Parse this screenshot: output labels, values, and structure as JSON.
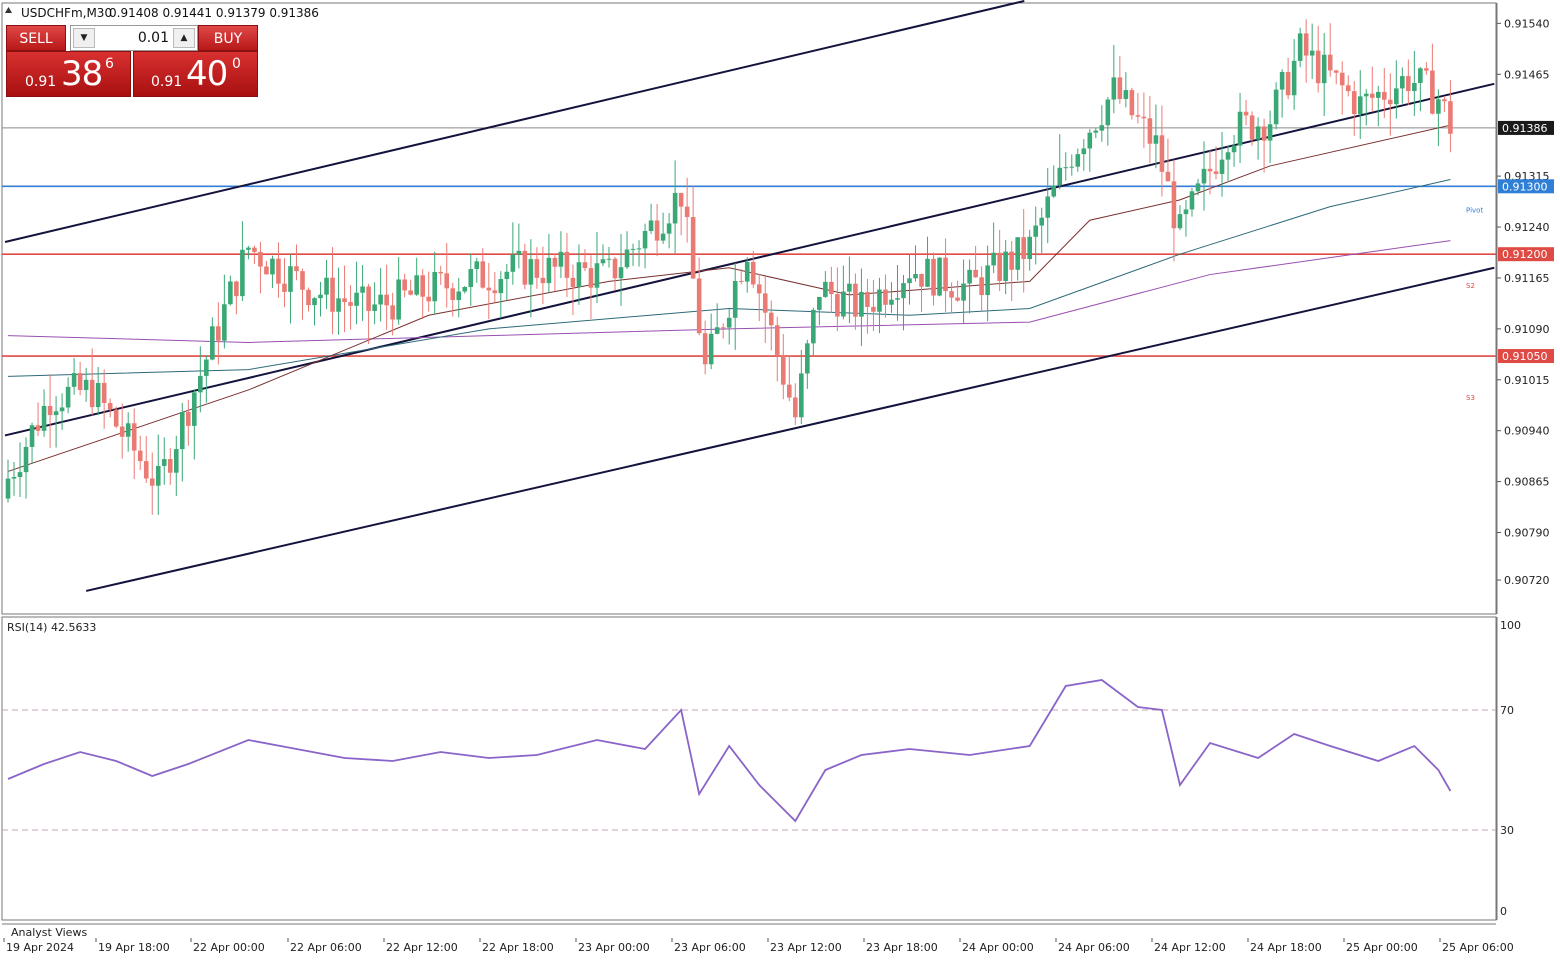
{
  "header": {
    "symbol": "USDCHFm,M30",
    "ohlc": "0.91408 0.91441 0.91379 0.91386"
  },
  "trade_panel": {
    "sell_label": "SELL",
    "buy_label": "BUY",
    "volume": "0.01",
    "sell_prefix": "0.91",
    "sell_big": "38",
    "sell_sup": "6",
    "buy_prefix": "0.91",
    "buy_big": "40",
    "buy_sup": "0"
  },
  "colors": {
    "bull": "#3aa876",
    "bear": "#ea7a74",
    "channel": "#13133d",
    "pivot_line": "#2f7fd6",
    "support_line": "#e04a44",
    "ma_fast": "#7a3030",
    "ma_mid": "#2e6a7a",
    "ma_slow": "#9a4fb0",
    "rsi": "#8a64c8"
  },
  "chart_data": {
    "type": "candlestick",
    "title": "USDCHFm,M30",
    "ylim": [
      0.9067,
      0.9157
    ],
    "price_ticks": [
      "0.91540",
      "0.91465",
      "0.91315",
      "0.91240",
      "0.91165",
      "0.91090",
      "0.91015",
      "0.90940",
      "0.90865",
      "0.90790",
      "0.90720"
    ],
    "time_labels": [
      "19 Apr 2024",
      "19 Apr 18:00",
      "22 Apr 00:00",
      "22 Apr 06:00",
      "22 Apr 12:00",
      "22 Apr 18:00",
      "23 Apr 00:00",
      "23 Apr 06:00",
      "23 Apr 12:00",
      "23 Apr 18:00",
      "24 Apr 00:00",
      "24 Apr 06:00",
      "24 Apr 12:00",
      "24 Apr 18:00",
      "25 Apr 00:00",
      "25 Apr 06:00"
    ],
    "current_price": "0.91386",
    "levels": [
      {
        "label": "0.91300",
        "value": 0.913,
        "kind": "pivot",
        "tag": "Pivot"
      },
      {
        "label": "0.91200",
        "value": 0.912,
        "kind": "support",
        "tag": "S2"
      },
      {
        "label": "0.91050",
        "value": 0.9105,
        "kind": "support",
        "tag": "S3"
      }
    ],
    "channel_lines": [
      {
        "from": [
          -0.5,
          0.91218
        ],
        "to": [
          169.1,
          0.91573
        ]
      },
      {
        "from": [
          -0.5,
          0.90933
        ],
        "to": [
          247.3,
          0.91451
        ]
      },
      {
        "from": [
          13.0,
          0.90704
        ],
        "to": [
          247.3,
          0.9118
        ]
      }
    ],
    "anchors": [
      [
        0,
        0.9087,
        0.9079
      ],
      [
        7,
        0.9099,
        0.9087
      ],
      [
        14,
        0.91,
        0.9099
      ],
      [
        25,
        0.9086,
        0.91
      ],
      [
        40,
        0.9121,
        0.9087
      ],
      [
        50,
        0.9115,
        0.912
      ],
      [
        60,
        0.9112,
        0.9116
      ],
      [
        75,
        0.9116,
        0.911
      ],
      [
        86,
        0.9118,
        0.9115
      ],
      [
        100,
        0.9117,
        0.9111
      ],
      [
        112,
        0.9129,
        0.9117
      ],
      [
        116,
        0.9103,
        0.9129
      ],
      [
        123,
        0.9121,
        0.9103
      ],
      [
        131,
        0.9096,
        0.9121
      ],
      [
        135,
        0.9115,
        0.9096
      ],
      [
        142,
        0.9112,
        0.9115
      ],
      [
        150,
        0.9118,
        0.9112
      ],
      [
        160,
        0.9115,
        0.9118
      ],
      [
        170,
        0.9121,
        0.9115
      ],
      [
        177,
        0.9135,
        0.912
      ],
      [
        184,
        0.9144,
        0.9135
      ],
      [
        191,
        0.9136,
        0.9145
      ],
      [
        195,
        0.9123,
        0.9136
      ],
      [
        203,
        0.9138,
        0.9123
      ],
      [
        210,
        0.914,
        0.9137
      ],
      [
        215,
        0.915,
        0.914
      ],
      [
        225,
        0.9142,
        0.9149
      ],
      [
        233,
        0.9146,
        0.914
      ],
      [
        238,
        0.9143,
        0.9146
      ],
      [
        240,
        0.9139,
        0.9143
      ]
    ],
    "ma_fast": [
      [
        0,
        0.9088
      ],
      [
        40,
        0.91
      ],
      [
        70,
        0.9111
      ],
      [
        100,
        0.9116
      ],
      [
        120,
        0.9118
      ],
      [
        140,
        0.9114
      ],
      [
        170,
        0.9116
      ],
      [
        180,
        0.9125
      ],
      [
        195,
        0.9128
      ],
      [
        210,
        0.9133
      ],
      [
        240,
        0.9139
      ]
    ],
    "ma_mid": [
      [
        0,
        0.9102
      ],
      [
        40,
        0.9103
      ],
      [
        80,
        0.9109
      ],
      [
        120,
        0.9112
      ],
      [
        150,
        0.9111
      ],
      [
        170,
        0.9112
      ],
      [
        195,
        0.912
      ],
      [
        220,
        0.9127
      ],
      [
        240,
        0.9131
      ]
    ],
    "ma_slow": [
      [
        0,
        0.9108
      ],
      [
        40,
        0.9107
      ],
      [
        80,
        0.9108
      ],
      [
        120,
        0.9109
      ],
      [
        170,
        0.911
      ],
      [
        200,
        0.9117
      ],
      [
        240,
        0.9122
      ]
    ],
    "rsi": {
      "label": "RSI(14) 42.5633",
      "ylim": [
        0,
        100
      ],
      "ticks": [
        "100",
        "70",
        "30",
        "0"
      ],
      "levels": [
        70,
        30
      ],
      "points": [
        [
          0,
          47
        ],
        [
          6,
          52
        ],
        [
          12,
          56
        ],
        [
          18,
          53
        ],
        [
          24,
          48
        ],
        [
          30,
          52
        ],
        [
          40,
          60
        ],
        [
          48,
          57
        ],
        [
          56,
          54
        ],
        [
          64,
          53
        ],
        [
          72,
          56
        ],
        [
          80,
          54
        ],
        [
          88,
          55
        ],
        [
          98,
          60
        ],
        [
          106,
          57
        ],
        [
          112,
          70
        ],
        [
          115,
          42
        ],
        [
          120,
          58
        ],
        [
          125,
          45
        ],
        [
          131,
          33
        ],
        [
          136,
          50
        ],
        [
          142,
          55
        ],
        [
          150,
          57
        ],
        [
          160,
          55
        ],
        [
          170,
          58
        ],
        [
          176,
          78
        ],
        [
          182,
          80
        ],
        [
          188,
          71
        ],
        [
          192,
          70
        ],
        [
          195,
          45
        ],
        [
          200,
          59
        ],
        [
          208,
          54
        ],
        [
          214,
          62
        ],
        [
          220,
          58
        ],
        [
          228,
          53
        ],
        [
          234,
          58
        ],
        [
          238,
          50
        ],
        [
          240,
          43
        ]
      ]
    }
  },
  "footer": {
    "analyst_label": "Analyst Views"
  }
}
